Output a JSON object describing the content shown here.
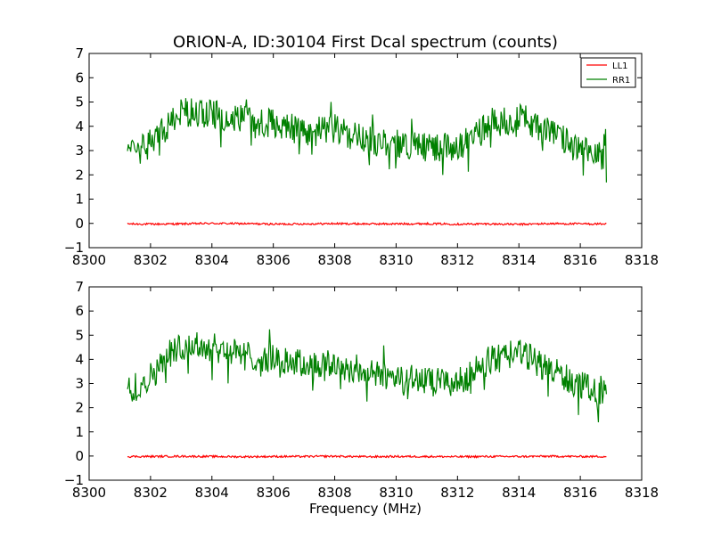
{
  "chart_data": [
    {
      "type": "line",
      "title": "ORION-A, ID:30104 First Dcal spectrum (counts)",
      "xlabel": "",
      "ylabel": "",
      "xlim": [
        8300,
        8318
      ],
      "ylim": [
        -1,
        7
      ],
      "xticks": [
        "8300",
        "8302",
        "8304",
        "8306",
        "8308",
        "8310",
        "8312",
        "8314",
        "8316",
        "8318"
      ],
      "yticks": [
        "−1",
        "0",
        "1",
        "2",
        "3",
        "4",
        "5",
        "6",
        "7"
      ],
      "grid": false,
      "legend": {
        "placement": "top-right",
        "entries": [
          "LL1",
          "RR1"
        ]
      },
      "series": [
        {
          "name": "LL1",
          "color": "#ff0000",
          "x": [
            8301.25,
            8302,
            8303,
            8304,
            8305,
            8306,
            8307,
            8308,
            8309,
            8310,
            8311,
            8312,
            8313,
            8314,
            8315,
            8316,
            8316.85
          ],
          "y": [
            -0.02,
            -0.03,
            -0.02,
            0.0,
            -0.01,
            -0.03,
            -0.02,
            -0.01,
            -0.02,
            -0.02,
            -0.01,
            -0.03,
            -0.02,
            -0.04,
            -0.01,
            -0.02,
            -0.02
          ],
          "noise": 0.04
        },
        {
          "name": "RR1",
          "color": "#008000",
          "x": [
            8301.25,
            8302,
            8303,
            8304,
            8305,
            8306,
            8307,
            8308,
            8309,
            8310,
            8311,
            8312,
            8313,
            8314,
            8315,
            8316,
            8316.85
          ],
          "y": [
            2.7,
            3.3,
            4.6,
            4.5,
            4.3,
            4.1,
            3.8,
            3.9,
            3.4,
            3.3,
            3.2,
            3.1,
            4.0,
            4.4,
            3.8,
            3.0,
            2.7
          ],
          "noise": 0.6
        }
      ]
    },
    {
      "type": "line",
      "title": "",
      "xlabel": "Frequency (MHz)",
      "ylabel": "",
      "xlim": [
        8300,
        8318
      ],
      "ylim": [
        -1,
        7
      ],
      "xticks": [
        "8300",
        "8302",
        "8304",
        "8306",
        "8308",
        "8310",
        "8312",
        "8314",
        "8316",
        "8318"
      ],
      "yticks": [
        "−1",
        "0",
        "1",
        "2",
        "3",
        "4",
        "5",
        "6",
        "7"
      ],
      "grid": false,
      "legend": null,
      "series": [
        {
          "color": "#ff0000",
          "x": [
            8301.25,
            8302,
            8303,
            8304,
            8305,
            8306,
            8307,
            8308,
            8309,
            8310,
            8311,
            8312,
            8313,
            8314,
            8315,
            8316,
            8316.85
          ],
          "y": [
            -0.02,
            -0.02,
            -0.01,
            -0.02,
            -0.03,
            -0.02,
            -0.02,
            -0.01,
            -0.03,
            -0.02,
            -0.02,
            -0.03,
            -0.02,
            -0.02,
            -0.01,
            -0.02,
            -0.02
          ],
          "noise": 0.04
        },
        {
          "color": "#008000",
          "x": [
            8301.25,
            8302,
            8303,
            8304,
            8305,
            8306,
            8307,
            8308,
            8309,
            8310,
            8311,
            8312,
            8313,
            8314,
            8315,
            8316,
            8316.85
          ],
          "y": [
            2.7,
            3.3,
            4.6,
            4.5,
            4.2,
            4.0,
            3.8,
            3.8,
            3.4,
            3.3,
            3.1,
            3.0,
            3.9,
            4.3,
            3.6,
            2.9,
            2.7
          ],
          "noise": 0.6
        }
      ]
    }
  ]
}
